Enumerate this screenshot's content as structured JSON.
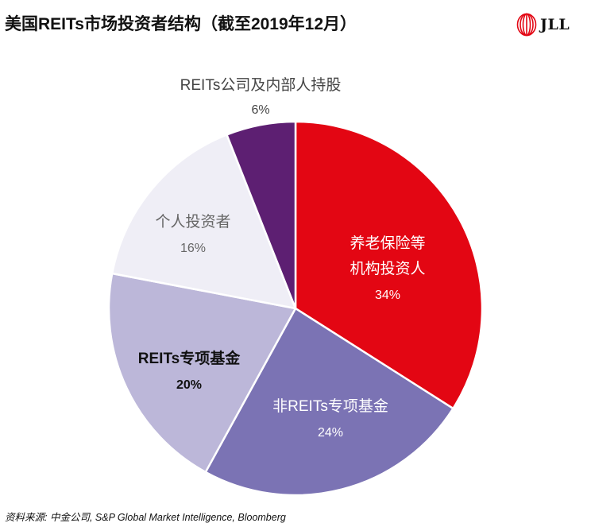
{
  "title": "美国REITs市场投资者结构（截至2019年12月）",
  "logo": {
    "text": "JLL",
    "icon": "jll-logo-icon",
    "color": "#e30613"
  },
  "source": "资料来源: 中金公司,  S&P Global Market Intelligence, Bloomberg",
  "chart_data": {
    "type": "pie",
    "title": "美国REITs市场投资者结构（截至2019年12月）",
    "start": "12 o'clock",
    "direction": "clockwise",
    "slices": [
      {
        "lines": [
          "养老保险等",
          "机构投资人"
        ],
        "value": 34,
        "value_label": "34%",
        "color": "#e30613",
        "text_color": "#ffffff",
        "bold": false
      },
      {
        "lines": [
          "非REITs专项基金"
        ],
        "value": 24,
        "value_label": "24%",
        "color": "#7b73b4",
        "text_color": "#ffffff",
        "bold": false
      },
      {
        "lines": [
          "REITs专项基金"
        ],
        "value": 20,
        "value_label": "20%",
        "color": "#bcb7d9",
        "text_color": "#111111",
        "bold": true
      },
      {
        "lines": [
          "个人投资者"
        ],
        "value": 16,
        "value_label": "16%",
        "color": "#efeef6",
        "text_color": "#666666",
        "bold": false
      },
      {
        "lines": [
          "REITs公司及内部人持股"
        ],
        "value": 6,
        "value_label": "6%",
        "color": "#5d1f72",
        "text_color": "#444444",
        "bold": false
      }
    ]
  }
}
